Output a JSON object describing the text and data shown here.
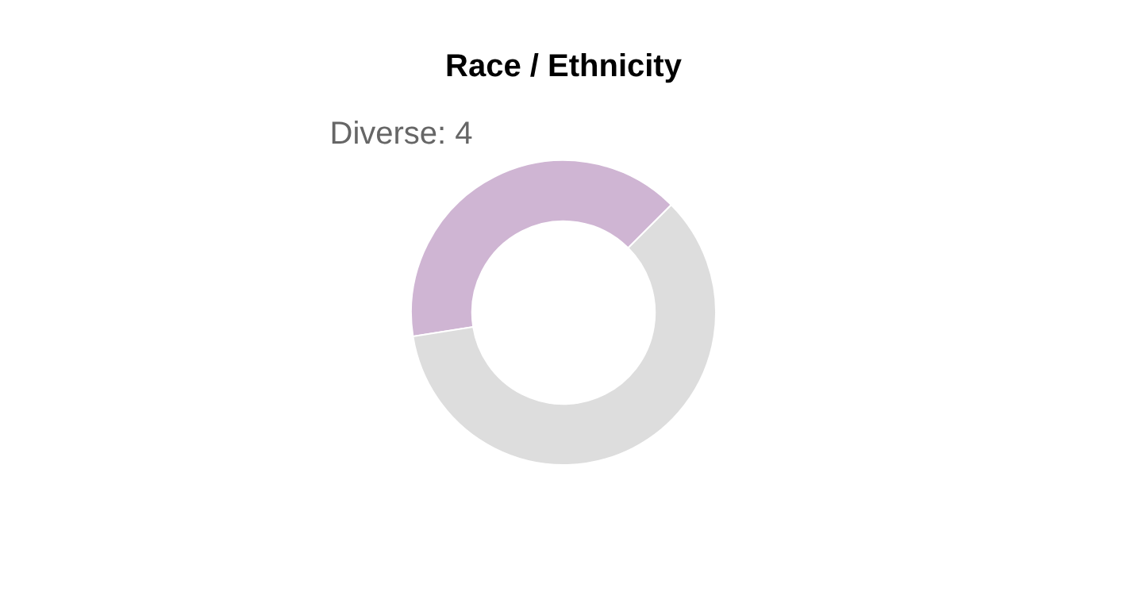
{
  "chart_data": {
    "type": "donut",
    "title": "Race / Ethnicity",
    "categories": [
      "Diverse",
      null
    ],
    "values": [
      4,
      6
    ],
    "colors": [
      "#cfb5d3",
      "#dddddd"
    ],
    "value_labels": [
      "4",
      null
    ],
    "legend": false
  }
}
